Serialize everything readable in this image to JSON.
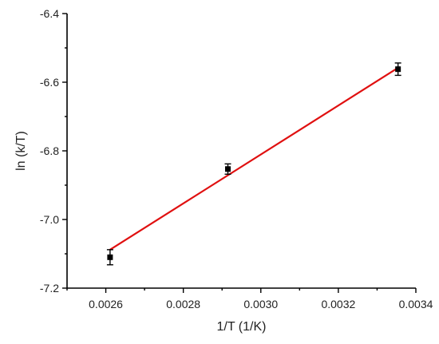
{
  "chart_data": {
    "type": "scatter",
    "title": "",
    "xlabel": "1/T (1/K)",
    "ylabel": "ln (k/T)",
    "xlim": [
      0.0025,
      0.0034
    ],
    "ylim": [
      -7.2,
      -6.4
    ],
    "x_ticks": [
      0.0026,
      0.0028,
      0.003,
      0.0032,
      0.0034
    ],
    "x_tick_labels": [
      "0.0026",
      "0.0028",
      "0.0030",
      "0.0032",
      "0.0034"
    ],
    "y_ticks": [
      -6.4,
      -6.6,
      -6.8,
      -7.0,
      -7.2
    ],
    "y_tick_labels": [
      "-6.4",
      "-6.6",
      "-6.8",
      "-7.0",
      "-7.2"
    ],
    "grid": false,
    "series": [
      {
        "points": [
          {
            "x": 0.002611,
            "y": -7.11,
            "err": 0.022
          },
          {
            "x": 0.002915,
            "y": -6.853,
            "err": 0.015
          },
          {
            "x": 0.003354,
            "y": -6.562,
            "err": 0.018
          }
        ],
        "marker": "square",
        "color": "#000000"
      }
    ],
    "fit_line": {
      "x": [
        0.002611,
        0.003354
      ],
      "y": [
        -7.088,
        -6.558
      ],
      "color": "#e01010"
    }
  }
}
